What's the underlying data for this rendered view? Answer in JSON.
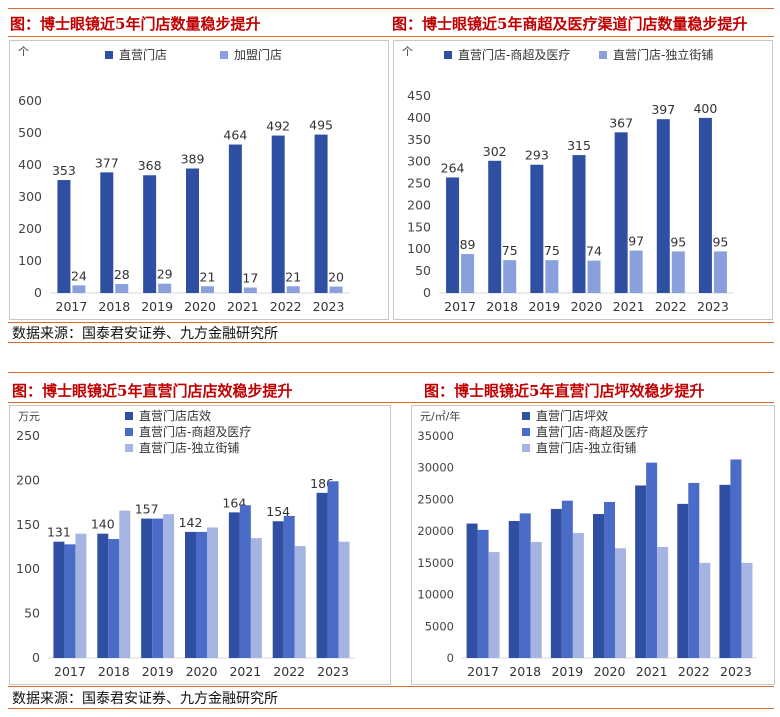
{
  "colors": {
    "title": "#c00000",
    "rule": "#d96b2b",
    "dark_blue": "#2f4fa3",
    "mid_blue": "#4a6cc7",
    "light_blue": "#a5b4e0"
  },
  "sections": [
    {
      "source_text": "数据来源：国泰君安证券、九方金融研究所"
    },
    {
      "source_text": "数据来源：国泰君安证券、九方金融研究所"
    }
  ],
  "chart_data": [
    {
      "type": "bar",
      "title": "图：博士眼镜近5年门店数量稳步提升",
      "ylabel": "个",
      "ylim": [
        0,
        600
      ],
      "yticks": [
        0,
        100,
        200,
        300,
        400,
        500,
        600
      ],
      "categories": [
        "2017",
        "2018",
        "2019",
        "2020",
        "2021",
        "2022",
        "2023"
      ],
      "series": [
        {
          "name": "直营门店",
          "values": [
            353,
            377,
            368,
            389,
            464,
            492,
            495
          ],
          "color": "#2f4fa3",
          "labels": true
        },
        {
          "name": "加盟门店",
          "values": [
            24,
            28,
            29,
            21,
            17,
            21,
            20
          ],
          "color": "#8aa0dd",
          "labels": true
        }
      ],
      "legend": "top"
    },
    {
      "type": "bar",
      "title": "图：博士眼镜近5年商超及医疗渠道门店数量稳步提升",
      "ylabel": "个",
      "ylim": [
        0,
        450
      ],
      "yticks": [
        0,
        50,
        100,
        150,
        200,
        250,
        300,
        350,
        400,
        450
      ],
      "categories": [
        "2017",
        "2018",
        "2019",
        "2020",
        "2021",
        "2022",
        "2023"
      ],
      "series": [
        {
          "name": "直营门店-商超及医疗",
          "values": [
            264,
            302,
            293,
            315,
            367,
            397,
            400
          ],
          "color": "#2f4fa3",
          "labels": true
        },
        {
          "name": "直营门店-独立街铺",
          "values": [
            89,
            75,
            75,
            74,
            97,
            95,
            95
          ],
          "color": "#8aa0dd",
          "labels": true
        }
      ],
      "legend": "top"
    },
    {
      "type": "bar",
      "title": "图：博士眼镜近5年直营门店店效稳步提升",
      "ylabel": "万元",
      "ylim": [
        0,
        250
      ],
      "yticks": [
        0,
        50,
        100,
        150,
        200,
        250
      ],
      "categories": [
        "2017",
        "2018",
        "2019",
        "2020",
        "2021",
        "2022",
        "2023"
      ],
      "series": [
        {
          "name": "直营门店店效",
          "values": [
            131,
            140,
            157,
            142,
            164,
            154,
            186
          ],
          "color": "#2f4fa3",
          "labels": true
        },
        {
          "name": "直营门店-商超及医疗",
          "values": [
            128,
            134,
            157,
            142,
            172,
            160,
            199
          ],
          "color": "#4a6cc7",
          "labels": false
        },
        {
          "name": "直营门店-独立街铺",
          "values": [
            140,
            166,
            162,
            147,
            135,
            126,
            131
          ],
          "color": "#a5b4e0",
          "labels": false
        }
      ],
      "legend": "top-left"
    },
    {
      "type": "bar",
      "title": "图：博士眼镜近5年直营门店坪效稳步提升",
      "ylabel": "元/㎡/年",
      "ylim": [
        0,
        35000
      ],
      "yticks": [
        0,
        5000,
        10000,
        15000,
        20000,
        25000,
        30000,
        35000
      ],
      "categories": [
        "2017",
        "2018",
        "2019",
        "2020",
        "2021",
        "2022",
        "2023"
      ],
      "series": [
        {
          "name": "直营门店坪效",
          "values": [
            21200,
            21600,
            23500,
            22700,
            27200,
            24300,
            27300
          ],
          "color": "#2f4fa3",
          "labels": false
        },
        {
          "name": "直营门店-商超及医疗",
          "values": [
            20200,
            22800,
            24800,
            24600,
            30800,
            27600,
            31300
          ],
          "color": "#4a6cc7",
          "labels": false
        },
        {
          "name": "直营门店-独立街铺",
          "values": [
            16700,
            18300,
            19700,
            17300,
            17500,
            15000,
            15000
          ],
          "color": "#a5b4e0",
          "labels": false
        }
      ],
      "legend": "top-left"
    }
  ]
}
